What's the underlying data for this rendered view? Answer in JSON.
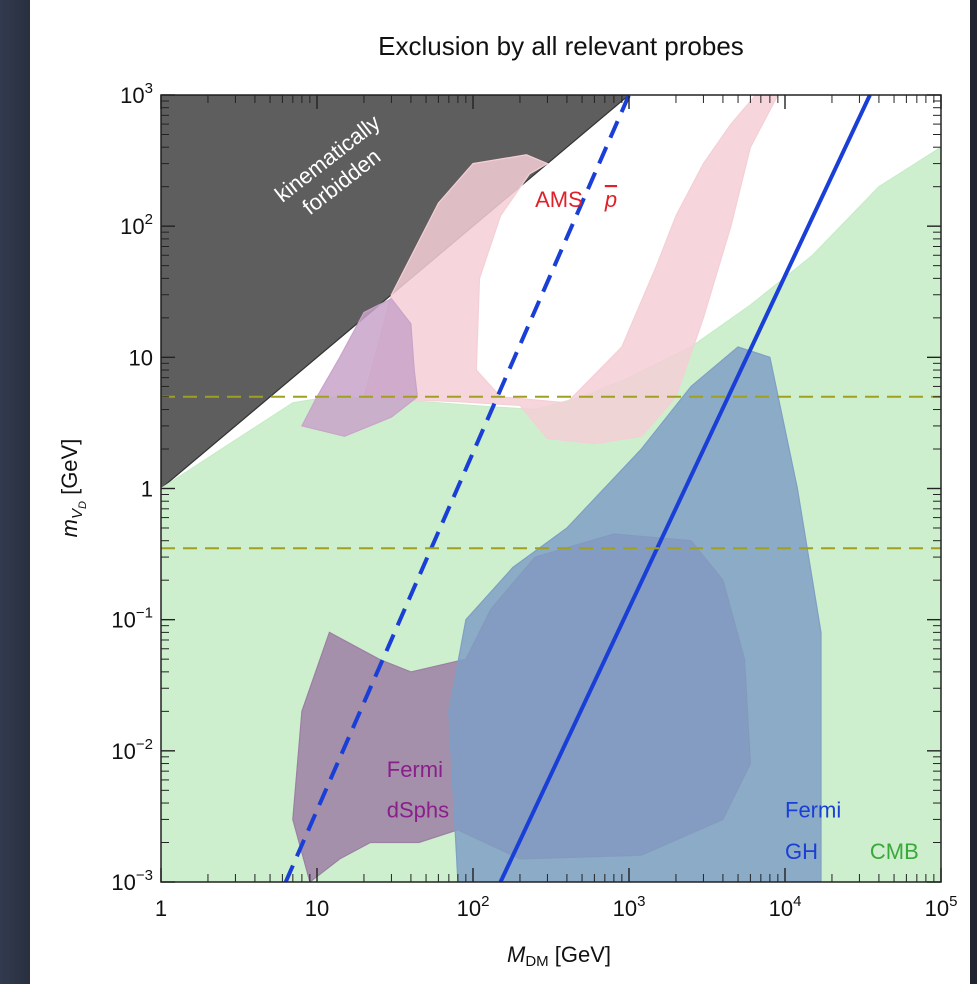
{
  "chart_data": {
    "type": "area",
    "title": "Exclusion by all relevant probes",
    "xlabel": "M_DM [GeV]",
    "ylabel": "m_V_D [GeV]",
    "xscale": "log",
    "yscale": "log",
    "xlim": [
      1,
      100000
    ],
    "ylim": [
      0.001,
      1000
    ],
    "x_ticks": [
      {
        "value": 1,
        "base": "1",
        "exp": ""
      },
      {
        "value": 10,
        "base": "10",
        "exp": ""
      },
      {
        "value": 100,
        "base": "10",
        "exp": "2"
      },
      {
        "value": 1000,
        "base": "10",
        "exp": "3"
      },
      {
        "value": 10000,
        "base": "10",
        "exp": "4"
      },
      {
        "value": 100000,
        "base": "10",
        "exp": "5"
      }
    ],
    "y_ticks": [
      {
        "value": 0.001,
        "base": "10",
        "exp": "−3"
      },
      {
        "value": 0.01,
        "base": "10",
        "exp": "−2"
      },
      {
        "value": 0.1,
        "base": "10",
        "exp": "−1"
      },
      {
        "value": 1,
        "base": "1",
        "exp": ""
      },
      {
        "value": 10,
        "base": "10",
        "exp": ""
      },
      {
        "value": 100,
        "base": "10",
        "exp": "2"
      },
      {
        "value": 1000,
        "base": "10",
        "exp": "3"
      }
    ],
    "regions": [
      {
        "name": "kinematically forbidden",
        "color": "#5e5e5e",
        "boundary": [
          [
            1,
            1
          ],
          [
            1000,
            1000
          ],
          [
            1,
            1000
          ]
        ]
      },
      {
        "name": "CMB",
        "color": "#c6ecc6",
        "boundary": [
          [
            1,
            1
          ],
          [
            7,
            4.5
          ],
          [
            12,
            5
          ],
          [
            30,
            4.8
          ],
          [
            60,
            4.5
          ],
          [
            130,
            4.2
          ],
          [
            250,
            4
          ],
          [
            500,
            5
          ],
          [
            1000,
            7
          ],
          [
            2500,
            12
          ],
          [
            6000,
            25
          ],
          [
            15000,
            60
          ],
          [
            40000,
            200
          ],
          [
            100000,
            400
          ],
          [
            100000,
            0.001
          ],
          [
            1,
            0.001
          ]
        ]
      },
      {
        "name": "Fermi dSphs",
        "color": "#9c7fa4",
        "boundary": [
          [
            9,
            0.001
          ],
          [
            14,
            0.0015
          ],
          [
            22,
            0.002
          ],
          [
            45,
            0.002
          ],
          [
            80,
            0.0025
          ],
          [
            200,
            0.0015
          ],
          [
            1200,
            0.0016
          ],
          [
            4000,
            0.003
          ],
          [
            6000,
            0.008
          ],
          [
            5500,
            0.05
          ],
          [
            4000,
            0.2
          ],
          [
            2500,
            0.4
          ],
          [
            800,
            0.45
          ],
          [
            250,
            0.3
          ],
          [
            130,
            0.12
          ],
          [
            90,
            0.05
          ],
          [
            40,
            0.04
          ],
          [
            25,
            0.05
          ],
          [
            12,
            0.08
          ],
          [
            8,
            0.02
          ],
          [
            7,
            0.003
          ]
        ]
      },
      {
        "name": "Fermi GH",
        "color": "#7f9fc4",
        "boundary": [
          [
            80,
            0.001
          ],
          [
            17000,
            0.001
          ],
          [
            17000,
            0.08
          ],
          [
            12000,
            1
          ],
          [
            8000,
            10
          ],
          [
            5000,
            12
          ],
          [
            2500,
            6
          ],
          [
            1200,
            2
          ],
          [
            400,
            0.5
          ],
          [
            180,
            0.25
          ],
          [
            90,
            0.1
          ],
          [
            70,
            0.02
          ]
        ]
      },
      {
        "name": "AMS p̄",
        "color": "#f4cfd6",
        "boundary": [
          [
            20,
            5
          ],
          [
            30,
            30
          ],
          [
            60,
            150
          ],
          [
            100,
            300
          ],
          [
            220,
            350
          ],
          [
            300,
            300
          ],
          [
            230,
            250
          ],
          [
            150,
            120
          ],
          [
            110,
            40
          ],
          [
            105,
            8
          ],
          [
            150,
            5
          ],
          [
            400,
            4.5
          ],
          [
            900,
            12
          ],
          [
            1500,
            50
          ],
          [
            2000,
            120
          ],
          [
            3000,
            300
          ],
          [
            4500,
            600
          ],
          [
            6500,
            1000
          ],
          [
            9000,
            1000
          ],
          [
            6000,
            400
          ],
          [
            4500,
            100
          ],
          [
            3000,
            20
          ],
          [
            2000,
            5
          ],
          [
            1200,
            2.5
          ],
          [
            600,
            2.2
          ],
          [
            300,
            2.4
          ],
          [
            200,
            4.3
          ],
          [
            80,
            4.6
          ],
          [
            30,
            4.8
          ]
        ]
      },
      {
        "name": "Fermi dSphs (upper)",
        "color": "#c9a3c9",
        "boundary": [
          [
            8,
            3
          ],
          [
            10,
            5
          ],
          [
            14,
            10
          ],
          [
            20,
            22
          ],
          [
            30,
            28
          ],
          [
            40,
            18
          ],
          [
            42,
            8
          ],
          [
            44,
            5
          ],
          [
            30,
            3.5
          ],
          [
            15,
            2.5
          ]
        ]
      }
    ],
    "lines": [
      {
        "name": "dashed-blue",
        "style": "dashed",
        "color": "#1a3fd6",
        "points": [
          [
            6.3,
            0.001
          ],
          [
            1000,
            1000
          ]
        ]
      },
      {
        "name": "solid-blue",
        "style": "solid",
        "color": "#1a3fd6",
        "points": [
          [
            150,
            0.001
          ],
          [
            35000,
            1000
          ]
        ]
      },
      {
        "name": "threshold-upper",
        "style": "dashed",
        "color": "#a0a020",
        "points": [
          [
            1,
            5
          ],
          [
            100000,
            5
          ]
        ]
      },
      {
        "name": "threshold-lower",
        "style": "dashed",
        "color": "#a0a020",
        "points": [
          [
            1,
            0.35
          ],
          [
            100000,
            0.35
          ]
        ]
      }
    ],
    "annotations": [
      {
        "text": "kinematically",
        "x": 6,
        "y": 150,
        "color": "#ffffff",
        "rotate": -38
      },
      {
        "text": "forbidden",
        "x": 9,
        "y": 120,
        "color": "#ffffff",
        "rotate": -38
      },
      {
        "text": "AMS",
        "x": 250,
        "y": 140,
        "color": "#e0202a"
      },
      {
        "text": "p",
        "x": 700,
        "y": 140,
        "color": "#e0202a"
      },
      {
        "text": "Fermi",
        "x": 28,
        "y": 0.0063,
        "color": "#8a1f8a"
      },
      {
        "text": "dSphs",
        "x": 28,
        "y": 0.0031,
        "color": "#8a1f8a"
      },
      {
        "text": "Fermi",
        "x": 10000,
        "y": 0.0031,
        "color": "#1a3fd6"
      },
      {
        "text": "GH",
        "x": 10000,
        "y": 0.0015,
        "color": "#1a3fd6"
      },
      {
        "text": "CMB",
        "x": 35000,
        "y": 0.0015,
        "color": "#3aa83a"
      }
    ]
  }
}
